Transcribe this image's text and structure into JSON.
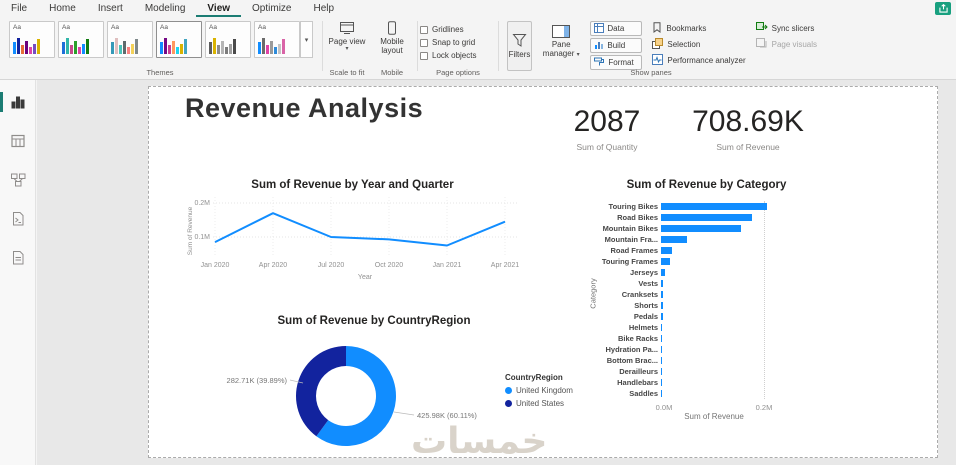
{
  "colors": {
    "accent_teal": "#1b7c73",
    "share_green": "#18a07f",
    "chart_blue": "#118DFF",
    "chart_navy": "#12239E"
  },
  "menubar": {
    "tabs": [
      "File",
      "Home",
      "Insert",
      "Modeling",
      "View",
      "Optimize",
      "Help"
    ],
    "active_tab": "View"
  },
  "ribbon": {
    "themes": {
      "group_label": "Themes",
      "selected_index": 3,
      "palettes": [
        [
          "#118DFF",
          "#12239E",
          "#E66C37",
          "#6B007B",
          "#E044A7",
          "#744EC2",
          "#D9B300"
        ],
        [
          "#1E6FD9",
          "#31B6A9",
          "#C84B8C",
          "#2BA02B",
          "#E044A7",
          "#118DFF",
          "#107C10"
        ],
        [
          "#3599B8",
          "#DFBFBF",
          "#4AC5BB",
          "#5F6B6D",
          "#FB8281",
          "#F4D25A",
          "#7F898A"
        ],
        [
          "#118DFF",
          "#750985",
          "#C83D95",
          "#FF985E",
          "#1DD5EE",
          "#D9B300",
          "#42A5C0"
        ],
        [
          "#5C5C5C",
          "#D9B300",
          "#8C8C8C",
          "#B5B5B5",
          "#7C7C7C",
          "#A0A0A0",
          "#4A4A4A"
        ],
        [
          "#118DFF",
          "#6B6B6B",
          "#E044A7",
          "#9B9B9B",
          "#2E8BD9",
          "#C4C4C4",
          "#D964A7"
        ]
      ]
    },
    "page_view": {
      "label": "Page view",
      "group_label": "Scale to fit"
    },
    "mobile_layout": {
      "label": "Mobile layout",
      "group_label": "Mobile"
    },
    "page_options": {
      "checkboxes": [
        "Gridlines",
        "Snap to grid",
        "Lock objects"
      ],
      "group_label": "Page options"
    },
    "filters_label": "Filters",
    "pane_manager_label": "Pane manager",
    "show_panes": {
      "buttons": [
        "Data",
        "Build",
        "Format"
      ],
      "toggles": [
        "Bookmarks",
        "Selection",
        "Performance analyzer"
      ],
      "group_label": "Show panes"
    },
    "sync": {
      "items": [
        {
          "label": "Sync slicers",
          "enabled": true
        },
        {
          "label": "Page visuals",
          "enabled": false
        }
      ]
    }
  },
  "sidebar": {
    "views": [
      {
        "name": "report-view",
        "active": true
      },
      {
        "name": "table-view",
        "active": false
      },
      {
        "name": "model-view",
        "active": false
      },
      {
        "name": "dax-query-view",
        "active": false
      },
      {
        "name": "tmdl-view",
        "active": false
      }
    ]
  },
  "report": {
    "title": "Revenue Analysis",
    "cards": [
      {
        "value": "2087",
        "label": "Sum of Quantity"
      },
      {
        "value": "708.69K",
        "label": "Sum of Revenue"
      }
    ],
    "watermark": "خمسات"
  },
  "chart_data": [
    {
      "type": "line",
      "title": "Sum of Revenue by Year and Quarter",
      "x": [
        "Jan 2020",
        "Apr 2020",
        "Jul 2020",
        "Oct 2020",
        "Jan 2021",
        "Apr 2021"
      ],
      "values_m": [
        0.085,
        0.17,
        0.1,
        0.093,
        0.075,
        0.145
      ],
      "xlabel": "Year",
      "ylabel": "Sum of Revenue",
      "yticks": [
        {
          "label": "0.2M",
          "v": 0.2
        },
        {
          "label": "0.1M",
          "v": 0.1
        }
      ],
      "ylim": [
        0.05,
        0.23
      ],
      "line_color": "#118DFF",
      "grid": true
    },
    {
      "type": "bar",
      "title": "Sum of Revenue by Category",
      "xlabel": "Sum of Revenue",
      "ylabel": "Category",
      "categories": [
        "Touring Bikes",
        "Road Bikes",
        "Mountain Bikes",
        "Mountain Fra...",
        "Road Frames",
        "Touring Frames",
        "Jerseys",
        "Vests",
        "Cranksets",
        "Shorts",
        "Pedals",
        "Helmets",
        "Bike Racks",
        "Hydration Pa...",
        "Bottom Brac...",
        "Derailleurs",
        "Handlebars",
        "Saddles"
      ],
      "values_m": [
        0.211,
        0.182,
        0.16,
        0.052,
        0.022,
        0.017,
        0.007,
        0.0045,
        0.004,
        0.0035,
        0.003,
        0.0028,
        0.0025,
        0.0022,
        0.002,
        0.0015,
        0.0012,
        0.001
      ],
      "xticks": [
        {
          "label": "0.0M",
          "v": 0.0
        },
        {
          "label": "0.2M",
          "v": 0.2
        }
      ],
      "xlim": [
        0,
        0.26
      ],
      "bar_color": "#118DFF",
      "legend_position": "none"
    },
    {
      "type": "donut",
      "title": "Sum of Revenue by CountryRegion",
      "legend_title": "CountryRegion",
      "legend_position": "right",
      "slices": [
        {
          "name": "United Kingdom",
          "value_label": "425.98K (60.11%)",
          "pct": 60.11,
          "color": "#118DFF"
        },
        {
          "name": "United States",
          "value_label": "282.71K (39.89%)",
          "pct": 39.89,
          "color": "#12239E"
        }
      ]
    }
  ]
}
